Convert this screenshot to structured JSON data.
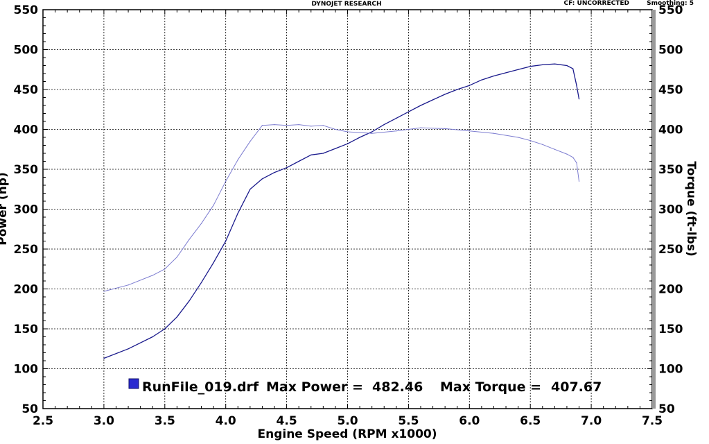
{
  "header": {
    "company": "DYNOJET RESEARCH",
    "correction": "CF: UNCORRECTED",
    "smoothing": "Smoothing: 5"
  },
  "legend": {
    "file": "RunFile_019.drf",
    "max_power_label": "Max Power =",
    "max_power_value": "482.46",
    "max_torque_label": "Max Torque =",
    "max_torque_value": "407.67"
  },
  "colors": {
    "power": "#1a1a8c",
    "torque": "#7c7cd0",
    "grid": "#000000",
    "right_axis_bar": "#9a9a9a",
    "legend_swatch": "#2a2ad0"
  },
  "chart_data": {
    "type": "line",
    "xlabel": "Engine Speed (RPM x1000)",
    "ylabel": "Power (hp)",
    "y2label": "Torque (ft-lbs)",
    "xlim": [
      2.5,
      7.5
    ],
    "ylim": [
      50,
      550
    ],
    "y2lim": [
      50,
      550
    ],
    "x_ticks": [
      "2.5",
      "3.0",
      "3.5",
      "4.0",
      "4.5",
      "5.0",
      "5.5",
      "6.0",
      "6.5",
      "7.0",
      "7.5"
    ],
    "y_ticks": [
      "50",
      "100",
      "150",
      "200",
      "250",
      "300",
      "350",
      "400",
      "450",
      "500",
      "550"
    ],
    "y2_ticks": [
      "50",
      "100",
      "150",
      "200",
      "250",
      "300",
      "350",
      "400",
      "450",
      "500",
      "550"
    ],
    "grid": true,
    "series": [
      {
        "key": "power",
        "axis": "left",
        "x": [
          3.0,
          3.2,
          3.4,
          3.5,
          3.6,
          3.7,
          3.8,
          3.9,
          4.0,
          4.1,
          4.2,
          4.3,
          4.4,
          4.5,
          4.6,
          4.7,
          4.8,
          4.9,
          5.0,
          5.1,
          5.2,
          5.3,
          5.4,
          5.5,
          5.6,
          5.7,
          5.8,
          5.9,
          6.0,
          6.1,
          6.2,
          6.3,
          6.4,
          6.5,
          6.6,
          6.7,
          6.8,
          6.85,
          6.88,
          6.9
        ],
        "values": [
          113,
          125,
          140,
          150,
          165,
          185,
          208,
          233,
          260,
          295,
          325,
          338,
          346,
          352,
          360,
          368,
          370,
          376,
          382,
          390,
          397,
          406,
          414,
          422,
          430,
          437,
          444,
          450,
          455,
          462,
          467,
          471,
          475,
          479,
          481,
          482,
          480,
          476,
          455,
          438
        ]
      },
      {
        "key": "torque",
        "axis": "right",
        "x": [
          3.0,
          3.2,
          3.4,
          3.5,
          3.6,
          3.7,
          3.8,
          3.9,
          4.0,
          4.1,
          4.2,
          4.3,
          4.4,
          4.5,
          4.6,
          4.7,
          4.8,
          4.9,
          5.0,
          5.2,
          5.4,
          5.6,
          5.8,
          6.0,
          6.2,
          6.4,
          6.5,
          6.6,
          6.7,
          6.8,
          6.85,
          6.88,
          6.9
        ],
        "values": [
          197,
          205,
          217,
          225,
          240,
          262,
          282,
          305,
          335,
          362,
          385,
          405,
          406,
          405,
          406,
          404,
          405,
          400,
          397,
          395,
          398,
          402,
          401,
          398,
          395,
          390,
          386,
          381,
          375,
          369,
          365,
          358,
          335
        ]
      }
    ]
  }
}
